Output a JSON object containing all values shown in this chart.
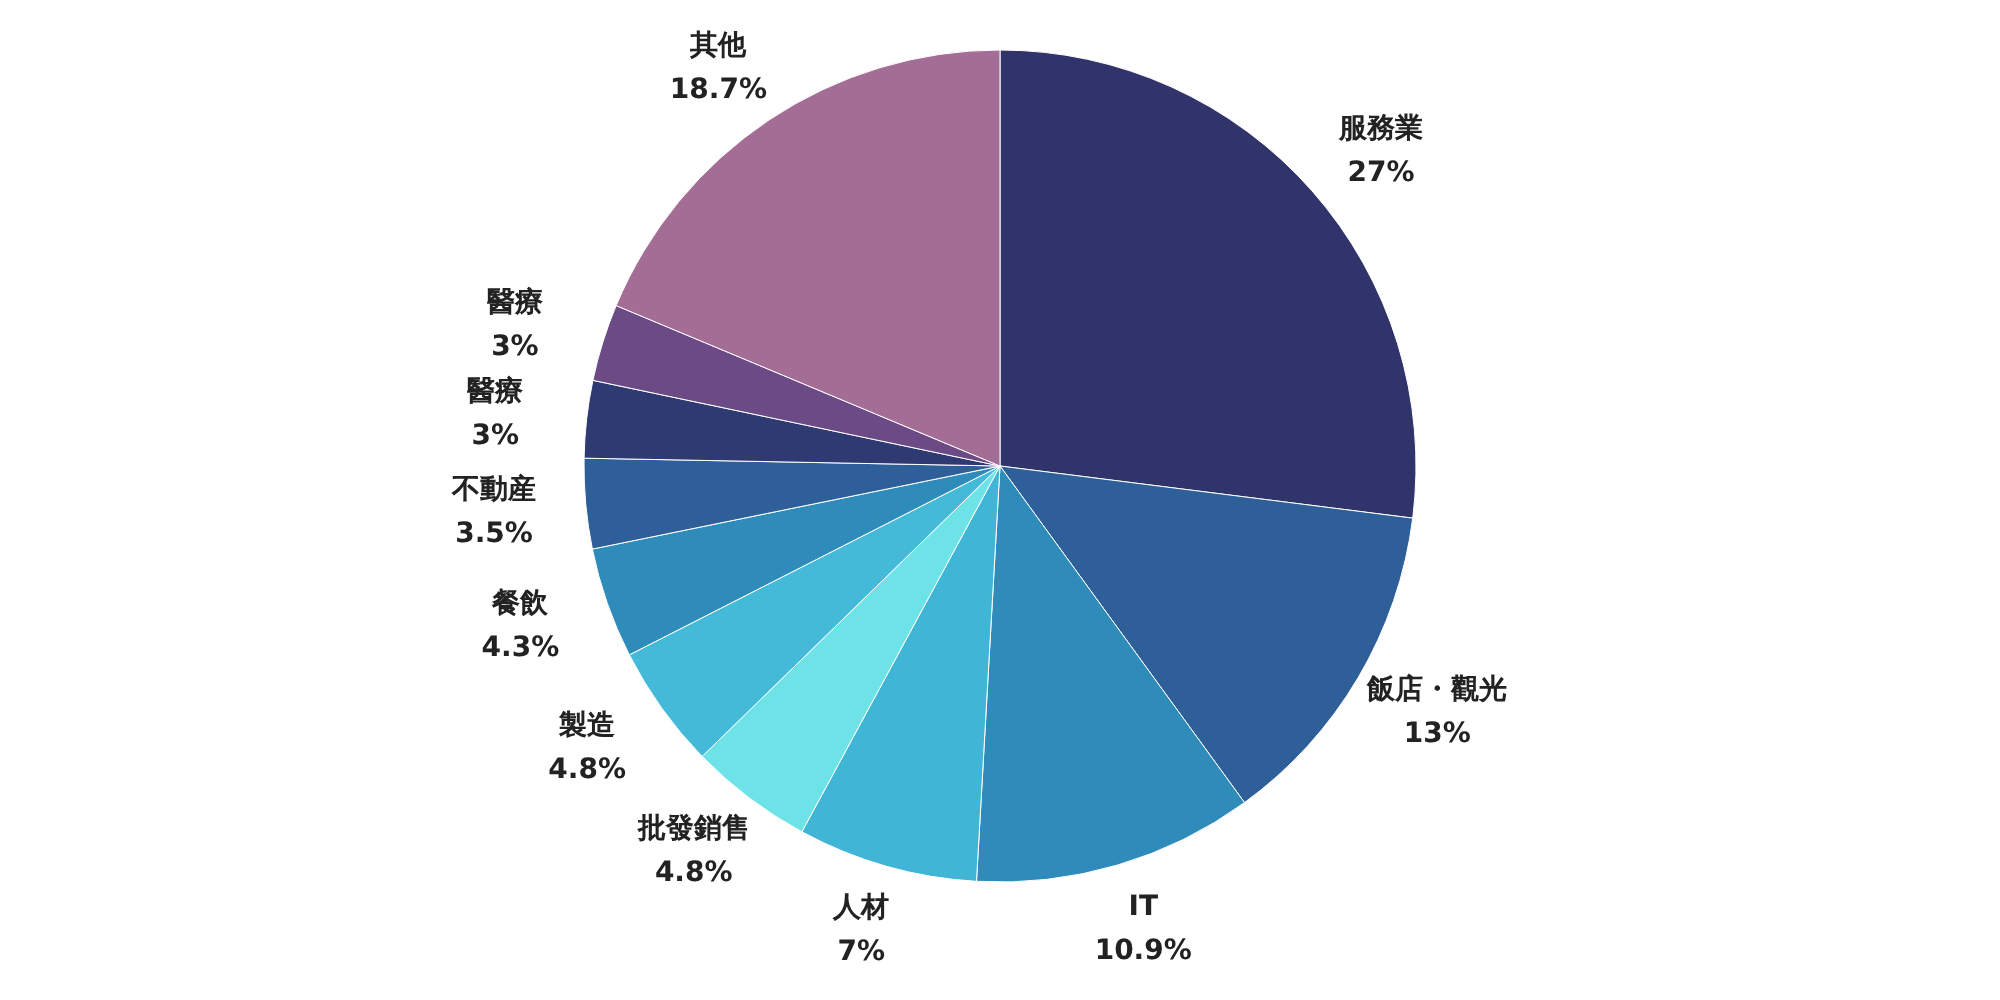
{
  "chart_data": {
    "type": "pie",
    "categories": [
      "服務業",
      "飯店・觀光",
      "IT",
      "人材",
      "批發銷售",
      "製造",
      "餐飲",
      "不動産",
      "醫療",
      "醫療",
      "其他"
    ],
    "values": [
      27,
      13,
      10.9,
      7,
      4.8,
      4.8,
      4.3,
      3.5,
      3,
      3,
      18.7
    ],
    "value_labels": [
      "27%",
      "13%",
      "10.9%",
      "7%",
      "4.8%",
      "4.8%",
      "4.3%",
      "3.5%",
      "3%",
      "3%",
      "18.7%"
    ],
    "colors": [
      "#31336b",
      "#2e5f98",
      "#2e8bba",
      "#41b5d6",
      "#6de3e8",
      "#44bad8",
      "#2e8bba",
      "#2e5f98",
      "#2f3a73",
      "#6c4a85",
      "#a36d96"
    ]
  }
}
